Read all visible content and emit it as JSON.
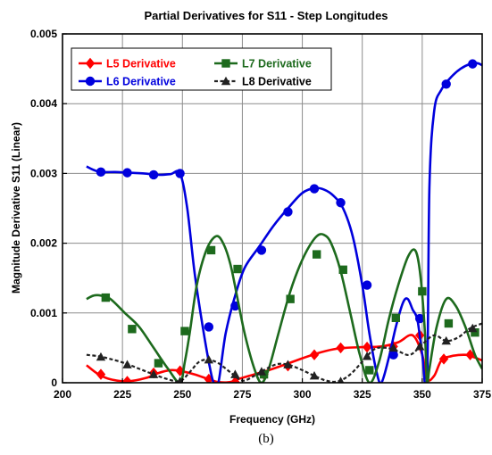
{
  "chart_data": {
    "type": "line",
    "title": "Partial Derivatives for S11 - Step Longitudes",
    "xlabel": "Frequency (GHz)",
    "ylabel": "Magnitude Derivative S11 (Linear)",
    "caption": "(b)",
    "xlim": [
      200,
      375
    ],
    "ylim": [
      0,
      0.005
    ],
    "x_ticks": [
      200,
      225,
      250,
      275,
      300,
      325,
      350,
      375
    ],
    "x_tick_labels": [
      "200",
      "225",
      "250",
      "275",
      "300",
      "325",
      "350",
      "375"
    ],
    "y_ticks": [
      0,
      0.001,
      0.002,
      0.003,
      0.004,
      0.005
    ],
    "y_tick_labels": [
      "0",
      "0.001",
      "0.002",
      "0.003",
      "0.004",
      "0.005"
    ],
    "grid": true,
    "legend_position": "top-left",
    "series": [
      {
        "name": "L5 Derivative",
        "color": "#ff0000",
        "marker": "diamond",
        "dash": "solid",
        "x": [
          210,
          215,
          220,
          227,
          235,
          240,
          245,
          249,
          255,
          261,
          265,
          270,
          273,
          280,
          286,
          292,
          300,
          306,
          313,
          318,
          325,
          333,
          340,
          346,
          350,
          352,
          355,
          358,
          362,
          368,
          372,
          375
        ],
        "y": [
          0.00025,
          0.00012,
          5e-05,
          2e-05,
          7e-05,
          0.00014,
          0.00018,
          0.00017,
          0.00012,
          5e-05,
          1e-05,
          1e-05,
          5e-05,
          0.00012,
          0.00018,
          0.00025,
          0.00035,
          0.00042,
          0.00048,
          0.0005,
          0.00051,
          0.00052,
          0.00058,
          0.00068,
          0.0004,
          5e-05,
          0.0001,
          0.00032,
          0.00038,
          0.0004,
          0.00036,
          0.00032
        ],
        "marker_x": [
          216,
          227,
          238,
          249,
          261,
          272,
          284,
          294,
          305,
          316,
          327,
          338,
          349,
          359,
          370
        ],
        "marker_y": [
          0.00012,
          2e-05,
          0.00014,
          0.00017,
          5e-05,
          1e-05,
          0.00012,
          0.00024,
          0.0004,
          0.0005,
          0.00051,
          0.00052,
          0.00068,
          0.00034,
          0.0004
        ]
      },
      {
        "name": "L6 Derivative",
        "color": "#0000dd",
        "marker": "circle",
        "dash": "solid",
        "x": [
          210,
          213,
          216,
          222,
          228,
          234,
          240,
          245,
          249,
          252,
          255,
          258,
          261,
          263,
          265,
          268,
          272,
          276,
          282,
          288,
          294,
          300,
          305,
          309,
          313,
          317,
          321,
          325,
          328,
          331,
          333,
          336,
          339,
          342,
          344,
          346,
          348,
          350,
          352,
          353,
          355,
          358,
          362,
          366,
          370,
          373,
          375
        ],
        "y": [
          0.0031,
          0.00305,
          0.00302,
          0.00302,
          0.00301,
          0.003,
          0.00298,
          0.00299,
          0.003,
          0.0025,
          0.0016,
          0.0009,
          0.0003,
          0.0,
          0.0,
          0.0007,
          0.00125,
          0.00165,
          0.00195,
          0.00225,
          0.0025,
          0.00272,
          0.00279,
          0.00277,
          0.00268,
          0.0025,
          0.0021,
          0.0014,
          0.0007,
          0.00015,
          0.0,
          0.00035,
          0.0008,
          0.00115,
          0.0012,
          0.00105,
          0.0009,
          0.0004,
          0.0,
          0.0028,
          0.0039,
          0.0042,
          0.00438,
          0.0045,
          0.00457,
          0.00458,
          0.00455
        ],
        "marker_x": [
          216,
          227,
          238,
          249,
          261,
          272,
          283,
          294,
          305,
          316,
          327,
          338,
          349,
          360,
          371
        ],
        "marker_y": [
          0.00302,
          0.00301,
          0.00298,
          0.003,
          0.0008,
          0.0011,
          0.0019,
          0.00245,
          0.00278,
          0.00258,
          0.0014,
          0.0004,
          0.00092,
          0.00428,
          0.00457
        ]
      },
      {
        "name": "L7 Derivative",
        "color": "#1d6a1d",
        "marker": "square",
        "dash": "solid",
        "x": [
          210,
          213,
          216,
          220,
          226,
          232,
          238,
          244,
          249,
          251,
          253,
          256,
          260,
          264,
          267,
          270,
          273,
          276,
          280,
          283,
          286,
          290,
          294,
          298,
          302,
          306,
          309,
          312,
          316,
          320,
          324,
          328,
          332,
          336,
          340,
          344,
          347,
          349,
          351,
          352,
          353,
          356,
          360,
          364,
          368,
          372,
          375
        ],
        "y": [
          0.0012,
          0.00125,
          0.00125,
          0.0012,
          0.001,
          0.0008,
          0.0005,
          0.0002,
          0.0,
          0.0003,
          0.0007,
          0.0014,
          0.0019,
          0.0021,
          0.002,
          0.0017,
          0.0012,
          0.0007,
          0.0002,
          0.0,
          0.0002,
          0.0007,
          0.0012,
          0.0016,
          0.0019,
          0.0021,
          0.00212,
          0.002,
          0.0016,
          0.001,
          0.0004,
          0.0,
          0.0003,
          0.0009,
          0.0014,
          0.0018,
          0.0019,
          0.0016,
          0.0008,
          0.0,
          0.0002,
          0.0008,
          0.0012,
          0.0011,
          0.0008,
          0.0004,
          0.0002
        ],
        "marker_x": [
          218,
          229,
          240,
          251,
          262,
          273,
          284,
          295,
          306,
          317,
          328,
          339,
          350,
          361,
          372
        ],
        "marker_y": [
          0.00122,
          0.00077,
          0.00028,
          0.00074,
          0.0019,
          0.00163,
          0.00012,
          0.0012,
          0.00184,
          0.00162,
          0.00018,
          0.00093,
          0.00131,
          0.00085,
          0.00072
        ]
      },
      {
        "name": "L8 Derivative",
        "color": "#222222",
        "marker": "triangle",
        "dash": "dashed",
        "x": [
          210,
          215,
          220,
          226,
          232,
          238,
          244,
          249,
          253,
          257,
          261,
          265,
          270,
          275,
          280,
          285,
          290,
          295,
          300,
          305,
          310,
          315,
          320,
          325,
          330,
          335,
          340,
          345,
          350,
          355,
          360,
          365,
          370,
          375
        ],
        "y": [
          0.0004,
          0.00038,
          0.00034,
          0.00028,
          0.0002,
          0.00012,
          5e-05,
          2e-05,
          0.00015,
          0.0003,
          0.00033,
          0.00028,
          0.00015,
          3e-05,
          0.0001,
          0.0002,
          0.00027,
          0.00025,
          0.00018,
          0.0001,
          3e-05,
          2e-05,
          0.00012,
          0.0003,
          0.00048,
          0.0005,
          0.00045,
          0.0004,
          0.00055,
          0.00068,
          0.0006,
          0.00065,
          0.00078,
          0.00085
        ],
        "marker_x": [
          216,
          227,
          238,
          249,
          261,
          272,
          283,
          294,
          305,
          316,
          327,
          338,
          349,
          360,
          371
        ],
        "marker_y": [
          0.00037,
          0.00026,
          0.00012,
          2e-05,
          0.00033,
          0.00012,
          0.00016,
          0.00026,
          0.0001,
          2e-05,
          0.00038,
          0.0005,
          0.00052,
          0.0006,
          0.00078
        ]
      }
    ]
  }
}
